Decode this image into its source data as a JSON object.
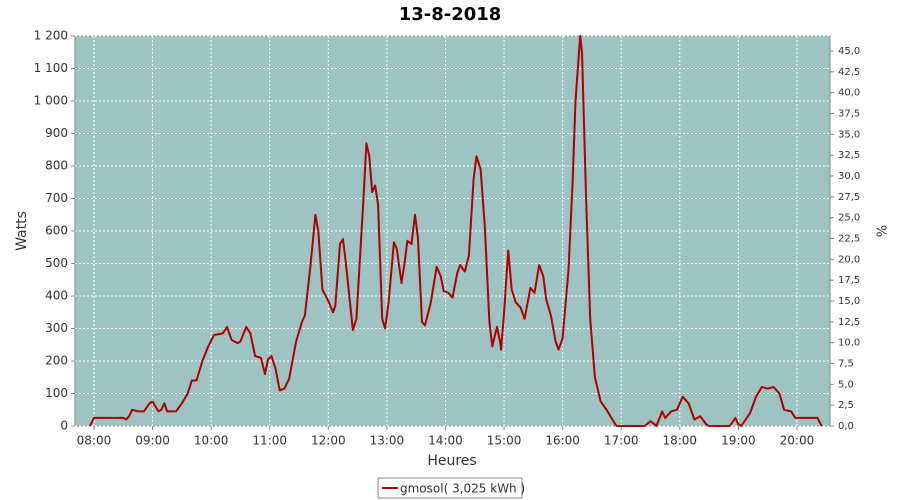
{
  "chart_data": {
    "type": "line",
    "title": "13-8-2018",
    "x_label": "Heures",
    "y_label": "Watts",
    "y2_label": "%",
    "x": [
      7.93,
      8.0,
      8.1,
      8.5,
      8.55,
      8.6,
      8.65,
      8.75,
      8.85,
      8.95,
      9.0,
      9.1,
      9.15,
      9.2,
      9.25,
      9.4,
      9.5,
      9.6,
      9.67,
      9.75,
      9.85,
      9.95,
      10.05,
      10.2,
      10.27,
      10.35,
      10.45,
      10.5,
      10.6,
      10.67,
      10.75,
      10.85,
      10.92,
      10.97,
      11.03,
      11.1,
      11.17,
      11.25,
      11.33,
      11.45,
      11.55,
      11.6,
      11.7,
      11.78,
      11.83,
      11.9,
      12.0,
      12.08,
      12.12,
      12.2,
      12.25,
      12.3,
      12.42,
      12.48,
      12.6,
      12.65,
      12.7,
      12.75,
      12.8,
      12.85,
      12.92,
      12.97,
      13.03,
      13.12,
      13.17,
      13.25,
      13.3,
      13.35,
      13.42,
      13.48,
      13.53,
      13.6,
      13.65,
      13.75,
      13.85,
      13.92,
      13.97,
      14.05,
      14.12,
      14.2,
      14.25,
      14.33,
      14.4,
      14.48,
      14.53,
      14.6,
      14.67,
      14.75,
      14.8,
      14.88,
      14.93,
      14.95,
      15.0,
      15.07,
      15.13,
      15.2,
      15.28,
      15.35,
      15.45,
      15.52,
      15.6,
      15.67,
      15.72,
      15.8,
      15.88,
      15.93,
      16.0,
      16.1,
      16.17,
      16.22,
      16.3,
      16.33,
      16.4,
      16.47,
      16.55,
      16.65,
      16.75,
      16.85,
      16.92,
      17.4,
      17.5,
      17.57,
      17.6,
      17.7,
      17.75,
      17.85,
      17.95,
      18.05,
      18.15,
      18.25,
      18.35,
      18.45,
      18.5,
      18.85,
      18.95,
      19.0,
      19.05,
      19.2,
      19.3,
      19.4,
      19.5,
      19.6,
      19.7,
      19.78,
      19.9,
      19.97,
      20.1,
      20.35,
      20.42
    ],
    "series": [
      {
        "name": "gmosol( 3,025 kWh )",
        "color": "#b00000",
        "values": [
          0,
          25,
          25,
          25,
          20,
          30,
          50,
          45,
          45,
          70,
          75,
          45,
          50,
          70,
          45,
          45,
          70,
          100,
          140,
          140,
          200,
          245,
          280,
          285,
          305,
          265,
          255,
          260,
          305,
          285,
          215,
          210,
          160,
          205,
          215,
          175,
          110,
          115,
          145,
          260,
          320,
          340,
          500,
          650,
          600,
          420,
          385,
          350,
          370,
          560,
          575,
          500,
          295,
          330,
          700,
          870,
          830,
          720,
          740,
          680,
          330,
          300,
          380,
          565,
          545,
          440,
          500,
          570,
          560,
          650,
          580,
          320,
          310,
          380,
          490,
          460,
          415,
          410,
          395,
          470,
          495,
          475,
          525,
          760,
          830,
          790,
          620,
          320,
          245,
          305,
          260,
          235,
          350,
          540,
          420,
          380,
          365,
          330,
          425,
          410,
          495,
          460,
          390,
          340,
          260,
          235,
          270,
          480,
          750,
          1000,
          1200,
          1150,
          700,
          330,
          150,
          75,
          50,
          20,
          0,
          0,
          15,
          5,
          0,
          45,
          25,
          45,
          50,
          90,
          70,
          20,
          30,
          5,
          0,
          0,
          25,
          5,
          0,
          40,
          90,
          120,
          115,
          120,
          100,
          50,
          45,
          25,
          25,
          25,
          0
        ]
      }
    ],
    "xlim": [
      7.676,
      20.564
    ],
    "xticks": [
      {
        "value": 8,
        "label": "08:00"
      },
      {
        "value": 9,
        "label": "09:00"
      },
      {
        "value": 10,
        "label": "10:00"
      },
      {
        "value": 11,
        "label": "11:00"
      },
      {
        "value": 12,
        "label": "12:00"
      },
      {
        "value": 13,
        "label": "13:00"
      },
      {
        "value": 14,
        "label": "14:00"
      },
      {
        "value": 15,
        "label": "15:00"
      },
      {
        "value": 16,
        "label": "16:00"
      },
      {
        "value": 17,
        "label": "17:00"
      },
      {
        "value": 18,
        "label": "18:00"
      },
      {
        "value": 19,
        "label": "19:00"
      },
      {
        "value": 20,
        "label": "20:00"
      }
    ],
    "ylim": [
      0,
      1200
    ],
    "yticks": [
      0,
      100,
      200,
      300,
      400,
      500,
      600,
      700,
      800,
      900,
      {
        "value": 1000,
        "label": "1 000"
      },
      {
        "value": 1100,
        "label": "1 100"
      },
      {
        "value": 1200,
        "label": "1 200"
      }
    ],
    "y2lim": [
      0,
      46.8
    ],
    "y2ticks": [
      {
        "value": 0,
        "label": "0,0"
      },
      {
        "value": 2.5,
        "label": "2,5"
      },
      {
        "value": 5,
        "label": "5,0"
      },
      {
        "value": 7.5,
        "label": "7,5"
      },
      {
        "value": 10,
        "label": "10,0"
      },
      {
        "value": 12.5,
        "label": "12,5"
      },
      {
        "value": 15,
        "label": "15,0"
      },
      {
        "value": 17.5,
        "label": "17,5"
      },
      {
        "value": 20,
        "label": "20,0"
      },
      {
        "value": 22.5,
        "label": "22,5"
      },
      {
        "value": 25,
        "label": "25,0"
      },
      {
        "value": 27.5,
        "label": "27,5"
      },
      {
        "value": 30,
        "label": "30,0"
      },
      {
        "value": 32.5,
        "label": "32,5"
      },
      {
        "value": 35,
        "label": "35,0"
      },
      {
        "value": 37.5,
        "label": "37,5"
      },
      {
        "value": 40,
        "label": "40,0"
      },
      {
        "value": 42.5,
        "label": "42,5"
      },
      {
        "value": 45,
        "label": "45,0"
      }
    ],
    "grid": true,
    "legend": "bottom",
    "plot_background": "#9dc3c3"
  }
}
